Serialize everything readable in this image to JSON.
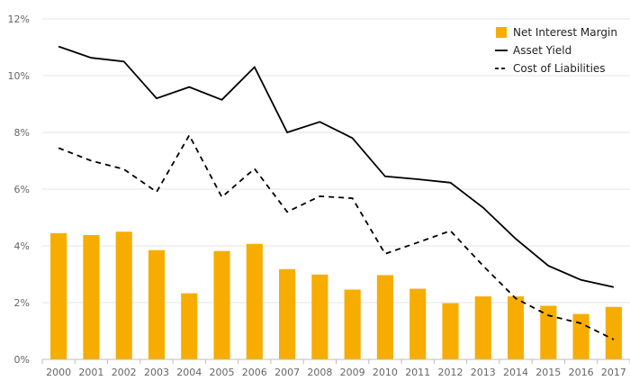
{
  "chart_data": {
    "type": "bar",
    "title": "",
    "xlabel": "",
    "ylabel": "",
    "ylim": [
      0,
      12
    ],
    "yticks": [
      0,
      2,
      4,
      6,
      8,
      10,
      12
    ],
    "ytick_labels": [
      "0%",
      "2%",
      "4%",
      "6%",
      "8%",
      "10%",
      "12%"
    ],
    "grid": true,
    "legend_position": "top-right",
    "categories": [
      "2000",
      "2001",
      "2002",
      "2003",
      "2004",
      "2005",
      "2006",
      "2007",
      "2008",
      "2009",
      "2010",
      "2011",
      "2012",
      "2013",
      "2014",
      "2015",
      "2016",
      "2017"
    ],
    "series": [
      {
        "name": "Net Interest Margin",
        "type": "bar",
        "color": "#F6AD00",
        "values": [
          4.45,
          4.38,
          4.5,
          3.85,
          2.33,
          3.82,
          4.07,
          3.18,
          2.99,
          2.46,
          2.97,
          2.49,
          1.98,
          2.22,
          2.22,
          1.89,
          1.6,
          1.85
        ]
      },
      {
        "name": "Asset Yield",
        "type": "line",
        "style": "solid",
        "color": "#000000",
        "values": [
          11.03,
          10.63,
          10.5,
          9.2,
          9.6,
          9.15,
          10.3,
          8.0,
          8.37,
          7.8,
          6.45,
          6.35,
          6.23,
          5.35,
          4.25,
          3.3,
          2.8,
          2.55
        ]
      },
      {
        "name": "Cost of Liabilities",
        "type": "line",
        "style": "dashed",
        "color": "#000000",
        "values": [
          7.45,
          7.0,
          6.7,
          5.9,
          7.9,
          5.72,
          6.72,
          5.2,
          5.75,
          5.68,
          3.72,
          4.12,
          4.53,
          3.3,
          2.15,
          1.55,
          1.27,
          0.7
        ]
      }
    ]
  }
}
